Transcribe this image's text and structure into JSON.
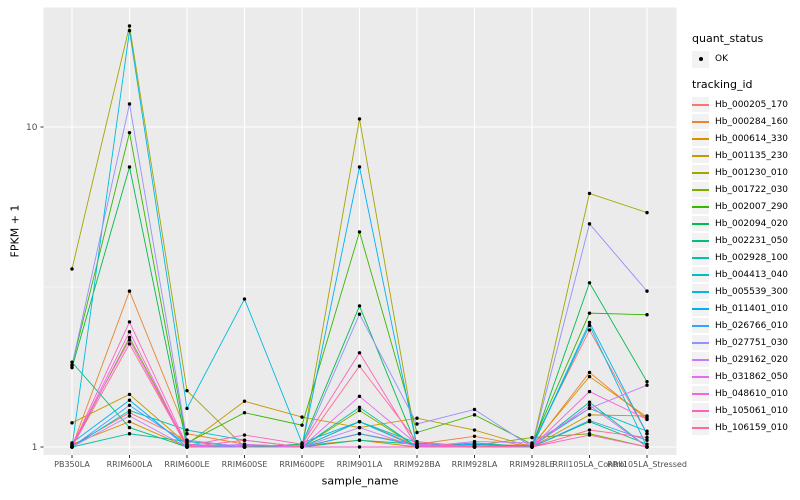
{
  "legend": {
    "quant_status_title": "quant_status",
    "quant_status_items": [
      {
        "label": "OK",
        "symbol": "black-point"
      }
    ],
    "tracking_id_title": "tracking_id"
  },
  "chart_data": {
    "type": "line",
    "title": "",
    "xlabel": "sample_name",
    "ylabel": "FPKM + 1",
    "x_scale": "categorical",
    "y_scale": "log10",
    "ylim_approx": [
      0.95,
      25
    ],
    "y_major_ticks": [
      10,
      1
    ],
    "y_tick_labels": [
      "10",
      "1"
    ],
    "y_minor_breaks": [
      3.162
    ],
    "grid": "white major gridlines on grey panel, one log minor line",
    "legend_position": "right",
    "marker": {
      "symbol": "circle",
      "color": "#000000",
      "radius": 1.7,
      "status_label": "OK"
    },
    "colors": {
      "panel_bg": "#EBEBEB",
      "grid": "#FFFFFF",
      "point": "#000000",
      "tick_text": "#4D4D4D",
      "axis_text": "#000000",
      "legend_key_bg": "#F2F2F2",
      "tick_mark": "#333333"
    },
    "categories": [
      "PB350LA",
      "RRIM600LA",
      "RRIM600LE",
      "RRIM600SE",
      "RRIM600PE",
      "RRIM901LA",
      "RRIM928BA",
      "RRIM928LA",
      "RRIM928LE",
      "RRII105LA_Control",
      "RRII105LA_Stressed"
    ],
    "series": [
      {
        "name": "Hb_000205_170",
        "color": "#F8766D",
        "values": [
          1.01,
          1.28,
          1.05,
          1.0,
          1.0,
          1.2,
          1.01,
          1.0,
          1.02,
          2.32,
          1.1
        ]
      },
      {
        "name": "Hb_000284_160",
        "color": "#EA8331",
        "values": [
          1.0,
          3.07,
          1.1,
          1.02,
          1.0,
          1.1,
          1.02,
          1.08,
          1.0,
          1.71,
          1.22
        ]
      },
      {
        "name": "Hb_000614_330",
        "color": "#D89000",
        "values": [
          1.02,
          1.2,
          1.0,
          1.0,
          1.01,
          1.05,
          1.0,
          1.02,
          1.01,
          1.66,
          1.24
        ]
      },
      {
        "name": "Hb_001135_230",
        "color": "#C49A00",
        "values": [
          1.19,
          1.46,
          1.02,
          1.39,
          1.24,
          1.15,
          1.23,
          1.13,
          1.0,
          1.26,
          1.25
        ]
      },
      {
        "name": "Hb_001230_010",
        "color": "#A3A500",
        "values": [
          3.6,
          20.7,
          1.5,
          1.0,
          1.0,
          10.6,
          1.0,
          1.0,
          1.0,
          6.2,
          5.4
        ]
      },
      {
        "name": "Hb_001722_030",
        "color": "#7CAE00",
        "values": [
          1.0,
          2.2,
          1.01,
          1.0,
          1.0,
          1.3,
          1.0,
          1.01,
          1.07,
          1.1,
          1.0
        ]
      },
      {
        "name": "Hb_002007_290",
        "color": "#39B600",
        "values": [
          1.8,
          9.6,
          1.03,
          1.28,
          1.17,
          4.7,
          1.11,
          1.26,
          1.02,
          2.62,
          2.59
        ]
      },
      {
        "name": "Hb_002094_020",
        "color": "#00BB4E",
        "values": [
          1.77,
          7.5,
          1.0,
          1.0,
          1.02,
          2.76,
          1.0,
          1.0,
          1.0,
          3.26,
          1.6
        ]
      },
      {
        "name": "Hb_002231_050",
        "color": "#00BF7D",
        "values": [
          1.84,
          1.15,
          1.0,
          1.01,
          1.0,
          1.05,
          1.02,
          1.0,
          1.0,
          1.2,
          1.02
        ]
      },
      {
        "name": "Hb_002928_100",
        "color": "#00C1A3",
        "values": [
          1.0,
          1.1,
          1.04,
          1.0,
          1.0,
          1.33,
          1.0,
          1.03,
          1.0,
          1.38,
          1.0
        ]
      },
      {
        "name": "Hb_004413_040",
        "color": "#00BFC4",
        "values": [
          1.0,
          1.3,
          1.13,
          1.05,
          1.0,
          1.2,
          1.03,
          1.0,
          1.01,
          1.32,
          1.12
        ]
      },
      {
        "name": "Hb_005539_300",
        "color": "#00BAE0",
        "values": [
          1.0,
          20.0,
          1.32,
          2.9,
          1.03,
          1.2,
          1.0,
          1.0,
          1.0,
          2.4,
          1.0
        ]
      },
      {
        "name": "Hb_011401_010",
        "color": "#00B0F6",
        "values": [
          1.03,
          1.4,
          1.0,
          1.0,
          1.0,
          7.5,
          1.0,
          1.02,
          1.0,
          2.45,
          1.1
        ]
      },
      {
        "name": "Hb_026766_010",
        "color": "#35A2FF",
        "values": [
          1.0,
          1.35,
          1.02,
          1.0,
          1.0,
          1.1,
          1.01,
          1.0,
          1.0,
          1.21,
          1.05
        ]
      },
      {
        "name": "Hb_027751_030",
        "color": "#9590FF",
        "values": [
          1.8,
          11.8,
          1.05,
          1.0,
          1.0,
          2.6,
          1.18,
          1.31,
          1.0,
          4.98,
          3.07
        ]
      },
      {
        "name": "Hb_029162_020",
        "color": "#C77CFF",
        "values": [
          1.0,
          1.25,
          1.0,
          1.02,
          1.0,
          1.15,
          1.0,
          1.04,
          1.03,
          1.32,
          1.56
        ]
      },
      {
        "name": "Hb_031862_050",
        "color": "#E76BF3",
        "values": [
          1.02,
          2.16,
          1.0,
          1.0,
          1.0,
          1.44,
          1.02,
          1.0,
          1.0,
          1.35,
          1.0
        ]
      },
      {
        "name": "Hb_048610_010",
        "color": "#FA62DB",
        "values": [
          1.0,
          2.29,
          1.0,
          1.0,
          1.0,
          1.0,
          1.0,
          1.0,
          1.0,
          1.49,
          1.22
        ]
      },
      {
        "name": "Hb_105061_010",
        "color": "#FF62BC",
        "values": [
          1.0,
          2.46,
          1.01,
          1.09,
          1.02,
          1.97,
          1.0,
          1.01,
          1.0,
          1.09,
          1.0
        ]
      },
      {
        "name": "Hb_106159_010",
        "color": "#FF6A98",
        "values": [
          1.0,
          2.1,
          1.0,
          1.05,
          1.0,
          1.79,
          1.04,
          1.0,
          1.0,
          1.13,
          1.07
        ]
      }
    ]
  }
}
